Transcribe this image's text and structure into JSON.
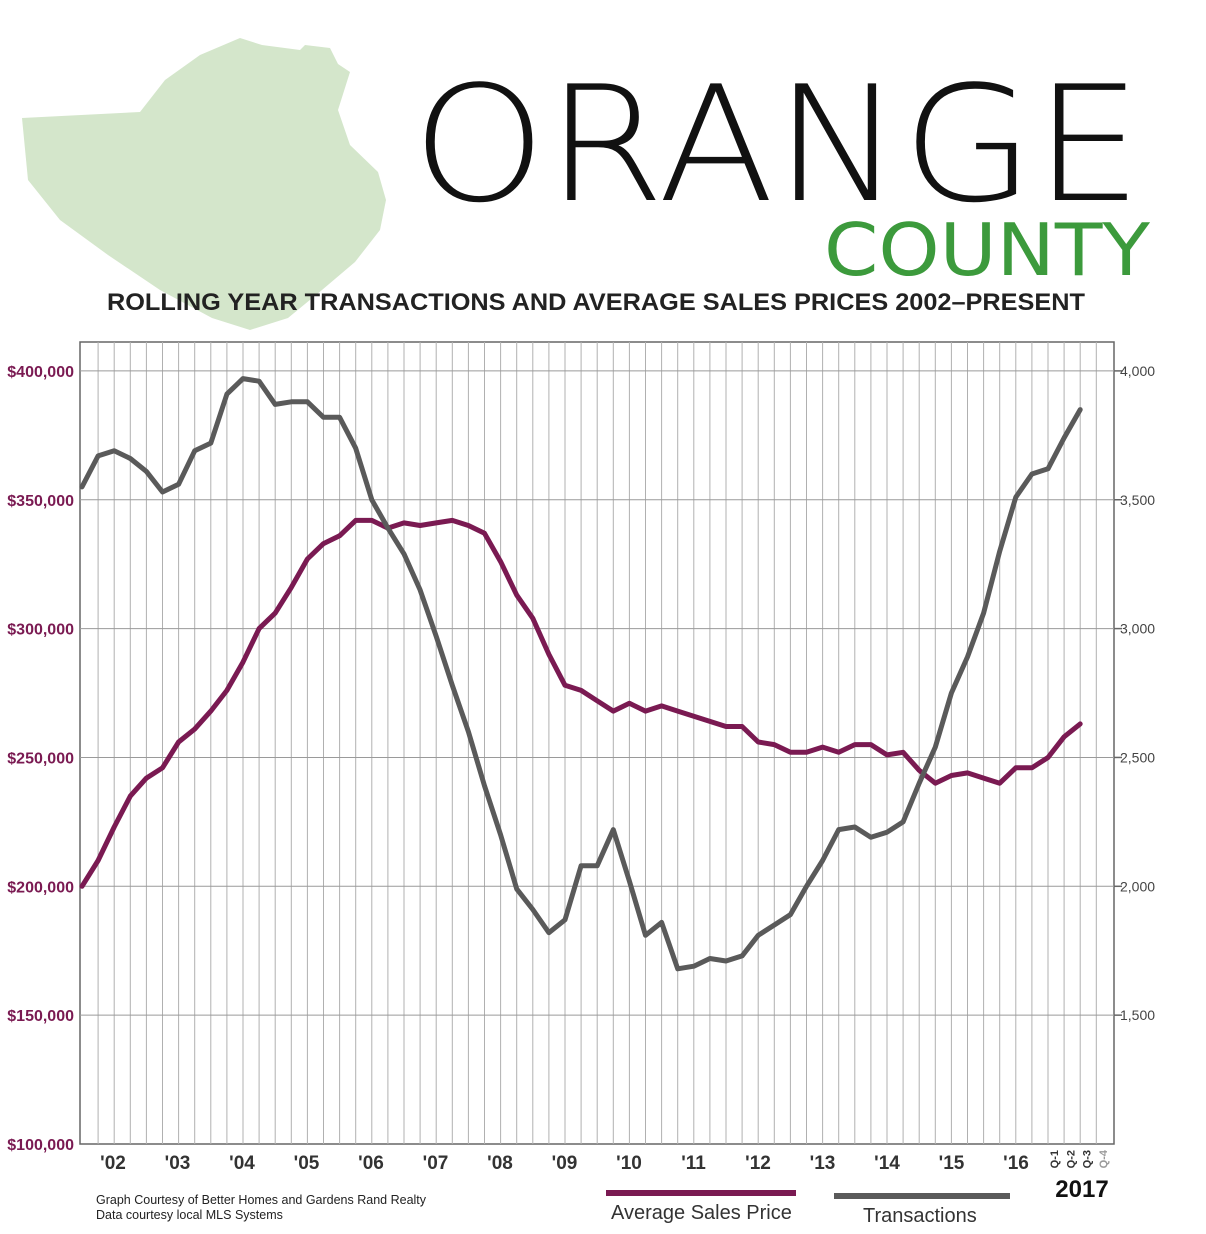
{
  "header": {
    "title": "ORANGE",
    "subtitle_county": "COUNTY",
    "chart_title": "ROLLING YEAR TRANSACTIONS AND AVERAGE SALES PRICES 2002–PRESENT"
  },
  "colors": {
    "price": "#7a1a52",
    "transactions": "#5a5a5a",
    "county": "#3c9a3c",
    "map_fill": "#d4e6cb",
    "grid": "#b0b0b0"
  },
  "footer": {
    "credit_line1": "Graph Courtesy of Better Homes and Gardens Rand Realty",
    "credit_line2": "Data courtesy local MLS Systems",
    "year_label": "2017"
  },
  "chart_data": {
    "type": "line",
    "title": "ROLLING YEAR TRANSACTIONS AND AVERAGE SALES PRICES 2002–PRESENT",
    "x_tick_labels": [
      "'02",
      "'03",
      "'04",
      "'05",
      "'06",
      "'07",
      "'08",
      "'09",
      "'10",
      "'11",
      "'12",
      "'13",
      "'14",
      "'15",
      "'16"
    ],
    "quarter_labels_2017": [
      "Q-1",
      "Q-2",
      "Q-3",
      "Q-4"
    ],
    "y_left": {
      "ticks": [
        "$100,000",
        "$150,000",
        "$200,000",
        "$250,000",
        "$300,000",
        "$350,000",
        "$400,000"
      ],
      "range": [
        100000,
        400000
      ]
    },
    "y_right": {
      "ticks": [
        "1,500",
        "2,000",
        "2,500",
        "3,000",
        "3,500",
        "4,000"
      ],
      "range": [
        1000,
        4000
      ]
    },
    "grid": true,
    "legend_placement": "bottom",
    "series": [
      {
        "name": "Average Sales Price",
        "axis": "left",
        "color": "#7a1a52",
        "values": [
          200000,
          210000,
          223000,
          235000,
          242000,
          246000,
          256000,
          261000,
          268000,
          276000,
          287000,
          300000,
          306000,
          316000,
          327000,
          333000,
          336000,
          342000,
          342000,
          339000,
          341000,
          340000,
          341000,
          342000,
          340000,
          337000,
          326000,
          313000,
          304000,
          290000,
          278000,
          276000,
          272000,
          268000,
          271000,
          268000,
          270000,
          268000,
          266000,
          264000,
          262000,
          262000,
          256000,
          255000,
          252000,
          252000,
          254000,
          252000,
          255000,
          255000,
          251000,
          252000,
          245000,
          240000,
          243000,
          244000,
          242000,
          240000,
          246000,
          246000,
          250000,
          258000,
          263000
        ]
      },
      {
        "name": "Transactions",
        "axis": "right",
        "color": "#5a5a5a",
        "values": [
          3550,
          3670,
          3690,
          3660,
          3610,
          3530,
          3560,
          3690,
          3720,
          3910,
          3970,
          3960,
          3870,
          3880,
          3880,
          3820,
          3820,
          3700,
          3500,
          3390,
          3290,
          3150,
          2970,
          2780,
          2600,
          2390,
          2200,
          1990,
          1910,
          1820,
          1870,
          2080,
          2080,
          2220,
          2020,
          1810,
          1860,
          1680,
          1690,
          1720,
          1710,
          1730,
          1810,
          1850,
          1890,
          2000,
          2100,
          2220,
          2230,
          2190,
          2210,
          2250,
          2400,
          2540,
          2750,
          2890,
          3060,
          3300,
          3510,
          3600,
          3620,
          3740,
          3850
        ]
      }
    ]
  }
}
